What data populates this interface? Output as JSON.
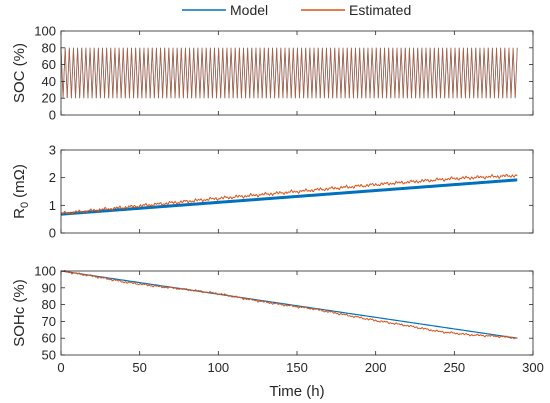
{
  "chart_data": [
    {
      "type": "line",
      "ylabel": "SOC (%)",
      "xlim": [
        0,
        300
      ],
      "ylim": [
        0,
        100
      ],
      "yticks": [
        0,
        20,
        40,
        60,
        80,
        100
      ],
      "grid": false,
      "series": [
        {
          "name": "Model",
          "color": "#0072BD",
          "behavior": "oscillates continuously between 20 and 80 over 0-290 h (dense cycling)",
          "min": 20,
          "max": 80,
          "x_end": 290
        },
        {
          "name": "Estimated",
          "color": "#D95319",
          "behavior": "oscillates continuously between 20 and 80 over 0-290 h (dense cycling)",
          "min": 20,
          "max": 80,
          "x_end": 290
        }
      ]
    },
    {
      "type": "line",
      "ylabel_main": "R",
      "ylabel_sub": "0",
      "ylabel_unit": "(mΩ)",
      "xlim": [
        0,
        300
      ],
      "ylim": [
        0,
        3
      ],
      "yticks": [
        0,
        1,
        2,
        3
      ],
      "grid": false,
      "series": [
        {
          "name": "Model",
          "color": "#0072BD",
          "x": [
            0,
            290
          ],
          "y": [
            0.68,
            1.92
          ]
        },
        {
          "name": "Estimated",
          "color": "#D95319",
          "x": [
            0,
            50,
            100,
            150,
            200,
            250,
            290
          ],
          "y": [
            0.7,
            0.98,
            1.25,
            1.5,
            1.75,
            1.97,
            2.08
          ]
        }
      ]
    },
    {
      "type": "line",
      "ylabel": "SOHc (%)",
      "xlabel": "Time (h)",
      "xlim": [
        0,
        300
      ],
      "ylim": [
        50,
        100
      ],
      "xticks": [
        0,
        50,
        100,
        150,
        200,
        250,
        300
      ],
      "yticks": [
        50,
        60,
        70,
        80,
        90,
        100
      ],
      "grid": false,
      "series": [
        {
          "name": "Model",
          "color": "#0072BD",
          "x": [
            0,
            290
          ],
          "y": [
            100,
            60
          ]
        },
        {
          "name": "Estimated",
          "color": "#D95319",
          "x": [
            0,
            20,
            40,
            60,
            80,
            100,
            120,
            140,
            160,
            180,
            200,
            220,
            240,
            260,
            280,
            290
          ],
          "y": [
            100,
            97,
            93.5,
            91,
            89,
            86.5,
            83,
            80,
            77.5,
            74,
            70.5,
            67.5,
            64,
            62,
            61,
            60
          ]
        }
      ]
    }
  ],
  "legend": {
    "position": "top-center",
    "entries": [
      {
        "label": "Model",
        "color": "#0072BD"
      },
      {
        "label": "Estimated",
        "color": "#D95319"
      }
    ]
  }
}
